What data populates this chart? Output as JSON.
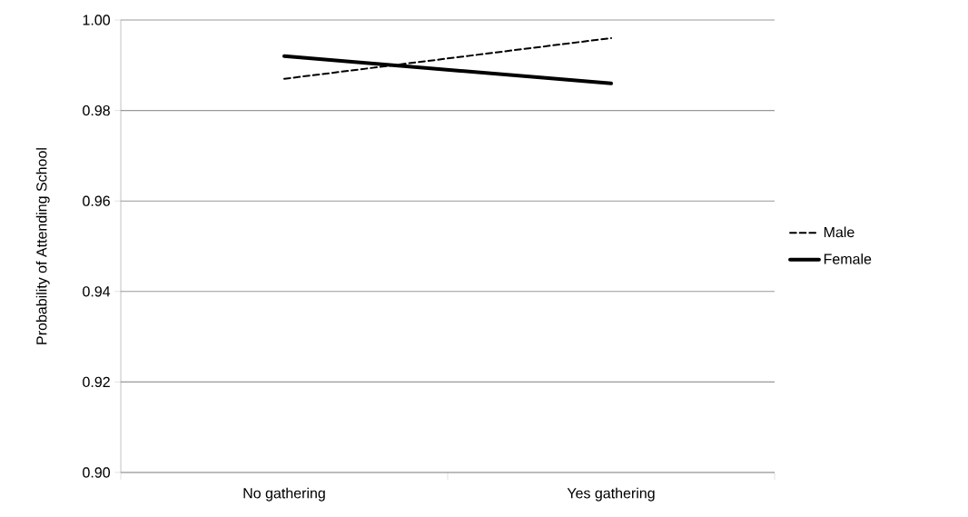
{
  "chart_data": {
    "type": "line",
    "ylabel": "Probability of Attending School",
    "categories": [
      "No gathering",
      "Yes gathering"
    ],
    "series": [
      {
        "name": "Male",
        "color": "#000000",
        "line_style": "dashed",
        "values": [
          0.987,
          0.996
        ]
      },
      {
        "name": "Female",
        "color": "#000000",
        "line_style": "solid",
        "values": [
          0.992,
          0.986
        ]
      }
    ],
    "ylim": [
      0.9,
      1.0
    ],
    "yticks": [
      {
        "value": 0.9,
        "label": "0.90"
      },
      {
        "value": 0.92,
        "label": "0.92"
      },
      {
        "value": 0.94,
        "label": "0.94"
      },
      {
        "value": 0.96,
        "label": "0.96"
      },
      {
        "value": 0.98,
        "label": "0.98"
      },
      {
        "value": 1.0,
        "label": "1.00"
      }
    ],
    "grid": "y",
    "legend": "right"
  }
}
